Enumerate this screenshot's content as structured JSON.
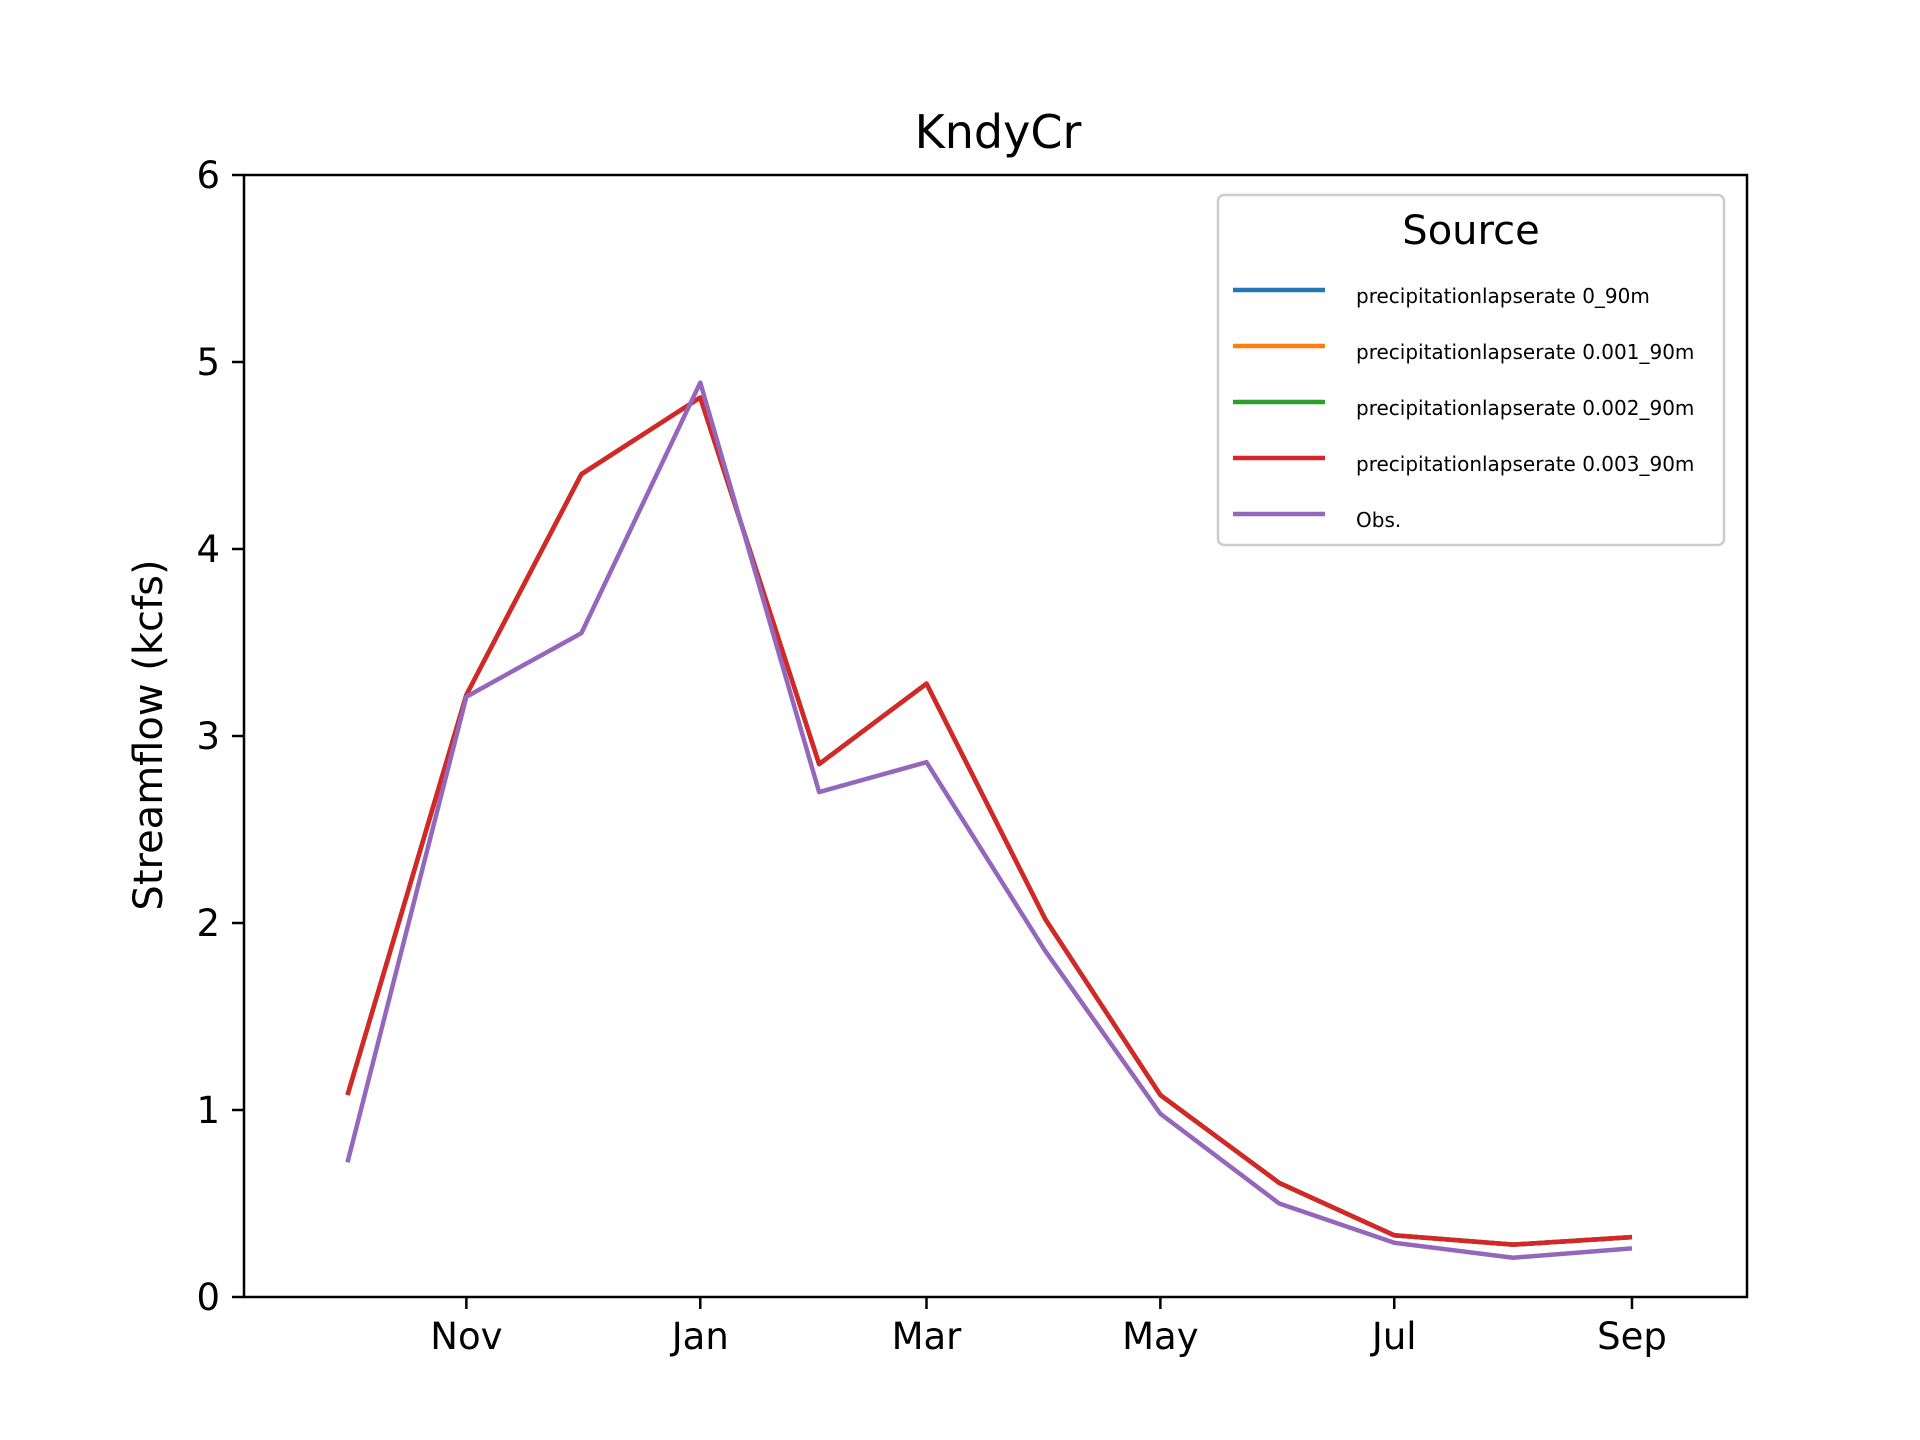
{
  "chart_data": {
    "type": "line",
    "title": "KndyCr",
    "xlabel": "",
    "ylabel": "Streamflow (kcfs)",
    "x": [
      "2000-10-01",
      "2000-11-01",
      "2000-12-01",
      "2001-01-01",
      "2001-02-01",
      "2001-03-01",
      "2001-04-01",
      "2001-05-01",
      "2001-06-01",
      "2001-07-01",
      "2001-08-01",
      "2001-09-01"
    ],
    "xlim": [
      "2000-09-04",
      "2001-10-01"
    ],
    "x_ticks": [
      {
        "date": "2000-11-01",
        "label": "Nov"
      },
      {
        "date": "2001-01-01",
        "label": "Jan"
      },
      {
        "date": "2001-03-01",
        "label": "Mar"
      },
      {
        "date": "2001-05-01",
        "label": "May"
      },
      {
        "date": "2001-07-01",
        "label": "Jul"
      },
      {
        "date": "2001-09-01",
        "label": "Sep"
      }
    ],
    "ylim": [
      0,
      6
    ],
    "y_ticks": [
      "0",
      "1",
      "2",
      "3",
      "4",
      "5",
      "6"
    ],
    "grid": false,
    "legend": {
      "title": "Source",
      "position": "top-right"
    },
    "series": [
      {
        "name": "precipitationlapserate 0_90m",
        "color": "#1f77b4",
        "values": [
          1.08,
          3.22,
          4.4,
          4.81,
          2.85,
          3.28,
          2.02,
          1.08,
          0.61,
          0.33,
          0.28,
          0.32
        ]
      },
      {
        "name": "precipitationlapserate 0.001_90m",
        "color": "#ff7f0e",
        "values": [
          1.08,
          3.22,
          4.4,
          4.81,
          2.85,
          3.28,
          2.02,
          1.08,
          0.61,
          0.33,
          0.28,
          0.32
        ]
      },
      {
        "name": "precipitationlapserate 0.002_90m",
        "color": "#2ca02c",
        "values": [
          1.08,
          3.22,
          4.4,
          4.81,
          2.85,
          3.28,
          2.02,
          1.08,
          0.61,
          0.33,
          0.28,
          0.32
        ]
      },
      {
        "name": "precipitationlapserate 0.003_90m",
        "color": "#d62728",
        "values": [
          1.08,
          3.22,
          4.4,
          4.81,
          2.85,
          3.28,
          2.02,
          1.08,
          0.61,
          0.33,
          0.28,
          0.32
        ]
      },
      {
        "name": "Obs.",
        "color": "#9467bd",
        "values": [
          0.72,
          3.21,
          3.55,
          4.89,
          2.7,
          2.86,
          1.85,
          0.98,
          0.5,
          0.29,
          0.21,
          0.26
        ]
      }
    ]
  }
}
